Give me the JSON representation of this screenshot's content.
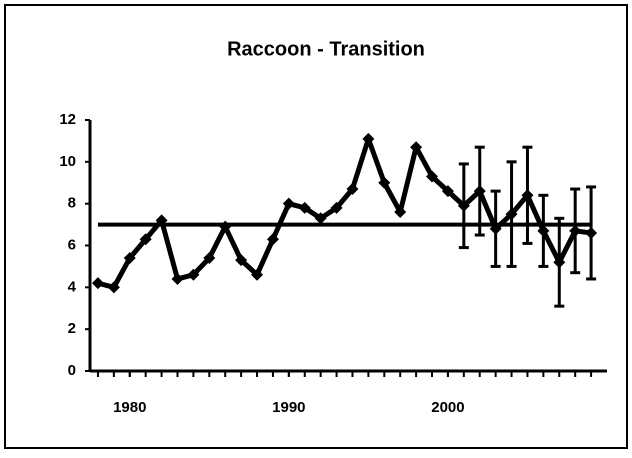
{
  "chart_data": {
    "type": "line",
    "title": "Raccoon - Transition",
    "x": [
      1978,
      1979,
      1980,
      1981,
      1982,
      1983,
      1984,
      1985,
      1986,
      1987,
      1988,
      1989,
      1990,
      1991,
      1992,
      1993,
      1994,
      1995,
      1996,
      1997,
      1998,
      1999,
      2000,
      2001,
      2002,
      2003,
      2004,
      2005,
      2006,
      2007,
      2008,
      2009
    ],
    "series": [
      {
        "color": "#000000",
        "values": [
          4.2,
          4.0,
          5.4,
          6.3,
          7.2,
          4.4,
          4.6,
          5.4,
          6.9,
          5.3,
          4.6,
          6.3,
          8.0,
          7.8,
          7.3,
          7.8,
          8.7,
          11.1,
          9.0,
          7.6,
          10.7,
          9.3,
          8.6,
          7.9,
          8.6,
          6.8,
          7.5,
          8.4,
          6.7,
          5.2,
          6.7,
          6.6
        ],
        "errors": [
          null,
          null,
          null,
          null,
          null,
          null,
          null,
          null,
          null,
          null,
          null,
          null,
          null,
          null,
          null,
          null,
          null,
          null,
          null,
          null,
          null,
          null,
          null,
          2.0,
          2.1,
          1.8,
          2.5,
          2.3,
          1.7,
          2.1,
          2.0,
          2.2
        ]
      }
    ],
    "reference_line": 7,
    "xlim": [
      1977.5,
      2010
    ],
    "xticks": [
      1980,
      1990,
      2000
    ],
    "ylim": [
      0,
      12
    ],
    "yticks": [
      0,
      2,
      4,
      6,
      8,
      10,
      12
    ],
    "grid": false
  }
}
